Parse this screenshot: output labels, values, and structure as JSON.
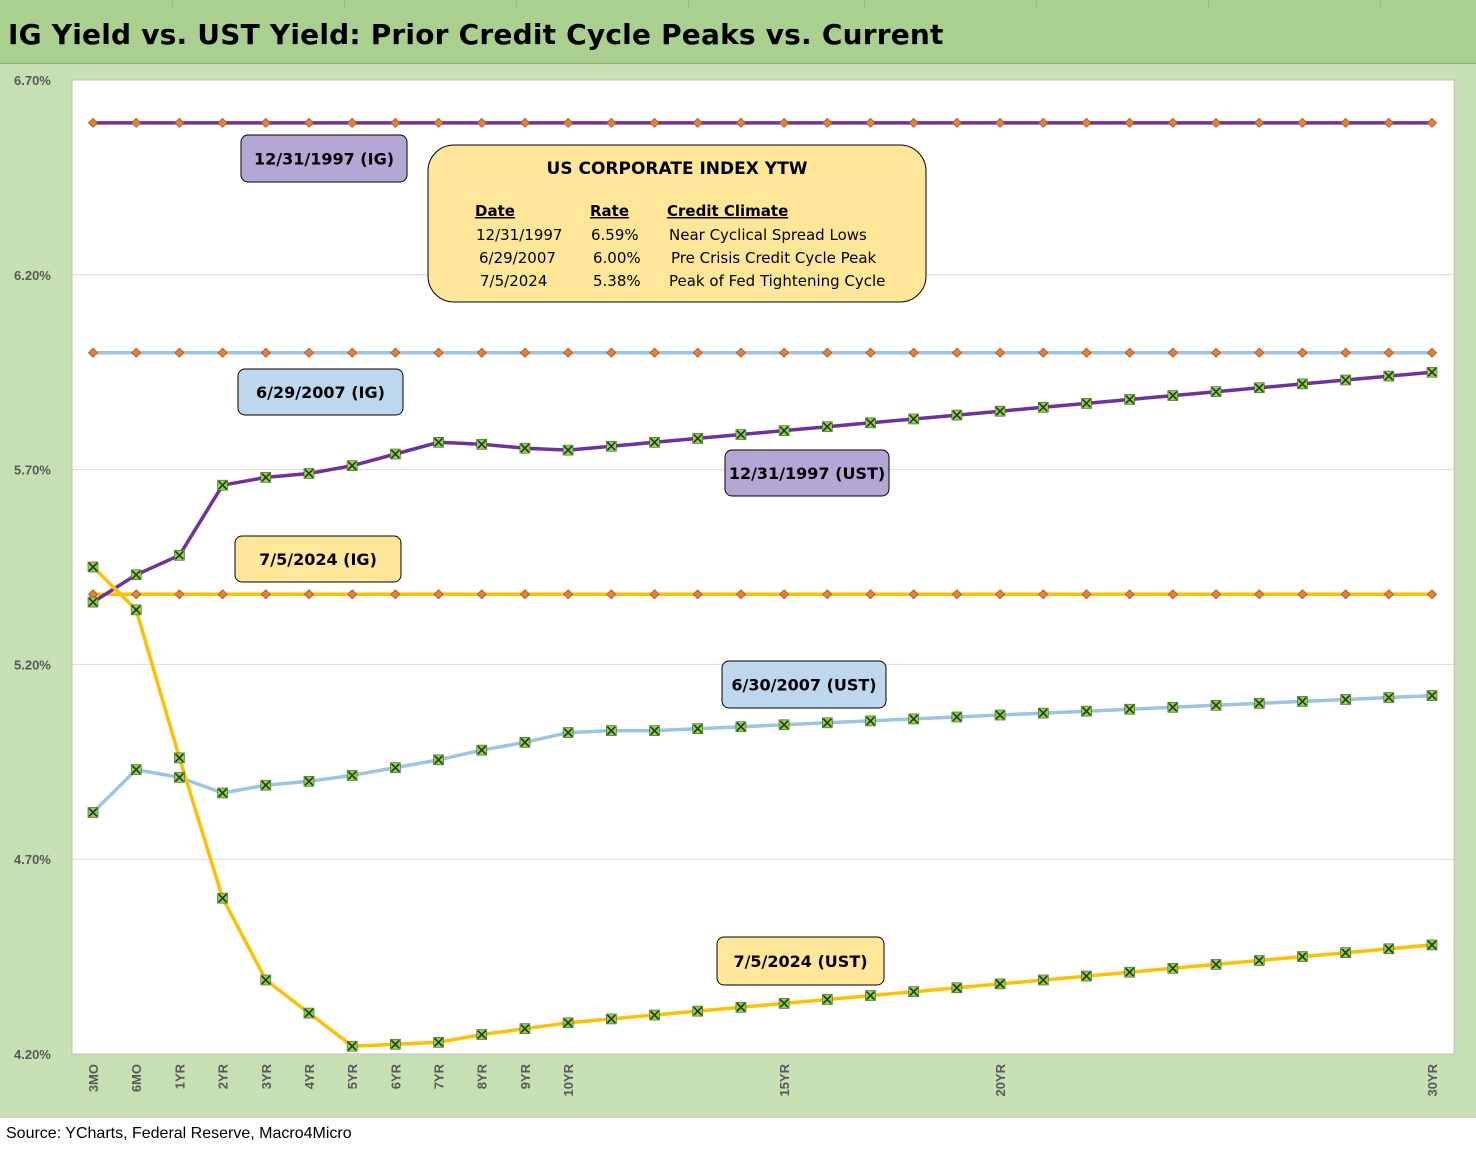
{
  "title": "IG Yield vs. UST Yield: Prior Credit Cycle Peaks vs. Current",
  "source": "Source: YCharts, Federal Reserve, Macro4Micro",
  "colors": {
    "frame": "#c6e0b4",
    "title_bar": "#a9d08e",
    "purple": "#7030a0",
    "light_blue": "#9dc3e6",
    "gold": "#ffc000",
    "diamond_marker": "#ed7d31",
    "x_marker_fill": "#92d050",
    "label_purple": "#b4a7d6",
    "label_blue": "#bdd7ee",
    "label_gold": "#ffe699"
  },
  "chart_data": {
    "type": "line",
    "title": "IG Yield vs. UST Yield: Prior Credit Cycle Peaks vs. Current",
    "xlabel": "",
    "ylabel": "",
    "ylim": [
      4.2,
      6.7
    ],
    "y_ticks": [
      "6.70%",
      "6.20%",
      "5.70%",
      "5.20%",
      "4.70%",
      "4.20%"
    ],
    "y_tick_values": [
      6.7,
      6.2,
      5.7,
      5.2,
      4.7,
      4.2
    ],
    "x_positions": [
      "3MO",
      "6MO",
      "1YR",
      "2YR",
      "3YR",
      "4YR",
      "5YR",
      "6YR",
      "7YR",
      "8YR",
      "9YR",
      "10YR",
      "11YR",
      "12YR",
      "13YR",
      "14YR",
      "15YR",
      "16YR",
      "17YR",
      "18YR",
      "19YR",
      "20YR",
      "21YR",
      "22YR",
      "23YR",
      "24YR",
      "25YR",
      "26YR",
      "27YR",
      "28YR",
      "29YR",
      "30YR"
    ],
    "x_tick_labels": [
      "3MO",
      "6MO",
      "1YR",
      "2YR",
      "3YR",
      "4YR",
      "5YR",
      "6YR",
      "7YR",
      "8YR",
      "9YR",
      "10YR",
      "",
      "",
      "",
      "",
      "15YR",
      "",
      "",
      "",
      "",
      "20YR",
      "",
      "",
      "",
      "",
      "",
      "",
      "",
      "",
      "",
      "30YR"
    ],
    "grid": true,
    "series": [
      {
        "name": "12/31/1997 (IG)",
        "color": "#7030a0",
        "marker": "diamond",
        "values": [
          6.59,
          6.59,
          6.59,
          6.59,
          6.59,
          6.59,
          6.59,
          6.59,
          6.59,
          6.59,
          6.59,
          6.59,
          6.59,
          6.59,
          6.59,
          6.59,
          6.59,
          6.59,
          6.59,
          6.59,
          6.59,
          6.59,
          6.59,
          6.59,
          6.59,
          6.59,
          6.59,
          6.59,
          6.59,
          6.59,
          6.59,
          6.59
        ]
      },
      {
        "name": "6/29/2007 (IG)",
        "color": "#9dc3e6",
        "marker": "diamond",
        "values": [
          6.0,
          6.0,
          6.0,
          6.0,
          6.0,
          6.0,
          6.0,
          6.0,
          6.0,
          6.0,
          6.0,
          6.0,
          6.0,
          6.0,
          6.0,
          6.0,
          6.0,
          6.0,
          6.0,
          6.0,
          6.0,
          6.0,
          6.0,
          6.0,
          6.0,
          6.0,
          6.0,
          6.0,
          6.0,
          6.0,
          6.0,
          6.0
        ]
      },
      {
        "name": "7/5/2024 (IG)",
        "color": "#ffc000",
        "marker": "diamond",
        "values": [
          5.38,
          5.38,
          5.38,
          5.38,
          5.38,
          5.38,
          5.38,
          5.38,
          5.38,
          5.38,
          5.38,
          5.38,
          5.38,
          5.38,
          5.38,
          5.38,
          5.38,
          5.38,
          5.38,
          5.38,
          5.38,
          5.38,
          5.38,
          5.38,
          5.38,
          5.38,
          5.38,
          5.38,
          5.38,
          5.38,
          5.38,
          5.38
        ]
      },
      {
        "name": "12/31/1997 (UST)",
        "color": "#7030a0",
        "marker": "x",
        "values": [
          5.36,
          5.43,
          5.48,
          5.66,
          5.68,
          5.69,
          5.71,
          5.74,
          5.77,
          5.765,
          5.755,
          5.75,
          5.76,
          5.77,
          5.78,
          5.79,
          5.8,
          5.81,
          5.82,
          5.83,
          5.84,
          5.85,
          5.86,
          5.87,
          5.88,
          5.89,
          5.9,
          5.91,
          5.92,
          5.93,
          5.94,
          5.95
        ]
      },
      {
        "name": "6/30/2007 (UST)",
        "color": "#9dc3e6",
        "marker": "x",
        "values": [
          4.82,
          4.93,
          4.91,
          4.87,
          4.89,
          4.9,
          4.915,
          4.935,
          4.955,
          4.98,
          5.0,
          5.025,
          5.03,
          5.03,
          5.035,
          5.04,
          5.045,
          5.05,
          5.055,
          5.06,
          5.065,
          5.07,
          5.075,
          5.08,
          5.085,
          5.09,
          5.095,
          5.1,
          5.105,
          5.11,
          5.115,
          5.12
        ]
      },
      {
        "name": "7/5/2024 (UST)",
        "color": "#ffc000",
        "marker": "x",
        "values": [
          5.45,
          5.34,
          4.96,
          4.6,
          4.39,
          4.305,
          4.22,
          4.225,
          4.23,
          4.25,
          4.265,
          4.28,
          4.29,
          4.3,
          4.31,
          4.32,
          4.33,
          4.34,
          4.35,
          4.36,
          4.37,
          4.38,
          4.39,
          4.4,
          4.41,
          4.42,
          4.43,
          4.44,
          4.45,
          4.46,
          4.47,
          4.48
        ]
      }
    ],
    "series_labels": [
      {
        "text": "12/31/1997 (IG)",
        "style": "purple"
      },
      {
        "text": "6/29/2007 (IG)",
        "style": "blue"
      },
      {
        "text": "12/31/1997 (UST)",
        "style": "purple"
      },
      {
        "text": "7/5/2024 (IG)",
        "style": "gold"
      },
      {
        "text": "6/30/2007 (UST)",
        "style": "blue"
      },
      {
        "text": "7/5/2024 (UST)",
        "style": "gold"
      }
    ],
    "info_box": {
      "title": "US CORPORATE INDEX YTW",
      "headers": [
        "Date",
        "Rate",
        "Credit Climate"
      ],
      "rows": [
        [
          "12/31/1997",
          "6.59%",
          "Near Cyclical Spread Lows"
        ],
        [
          "6/29/2007",
          "6.00%",
          "Pre Crisis Credit Cycle Peak"
        ],
        [
          "7/5/2024",
          "5.38%",
          "Peak of Fed Tightening Cycle"
        ]
      ]
    }
  }
}
